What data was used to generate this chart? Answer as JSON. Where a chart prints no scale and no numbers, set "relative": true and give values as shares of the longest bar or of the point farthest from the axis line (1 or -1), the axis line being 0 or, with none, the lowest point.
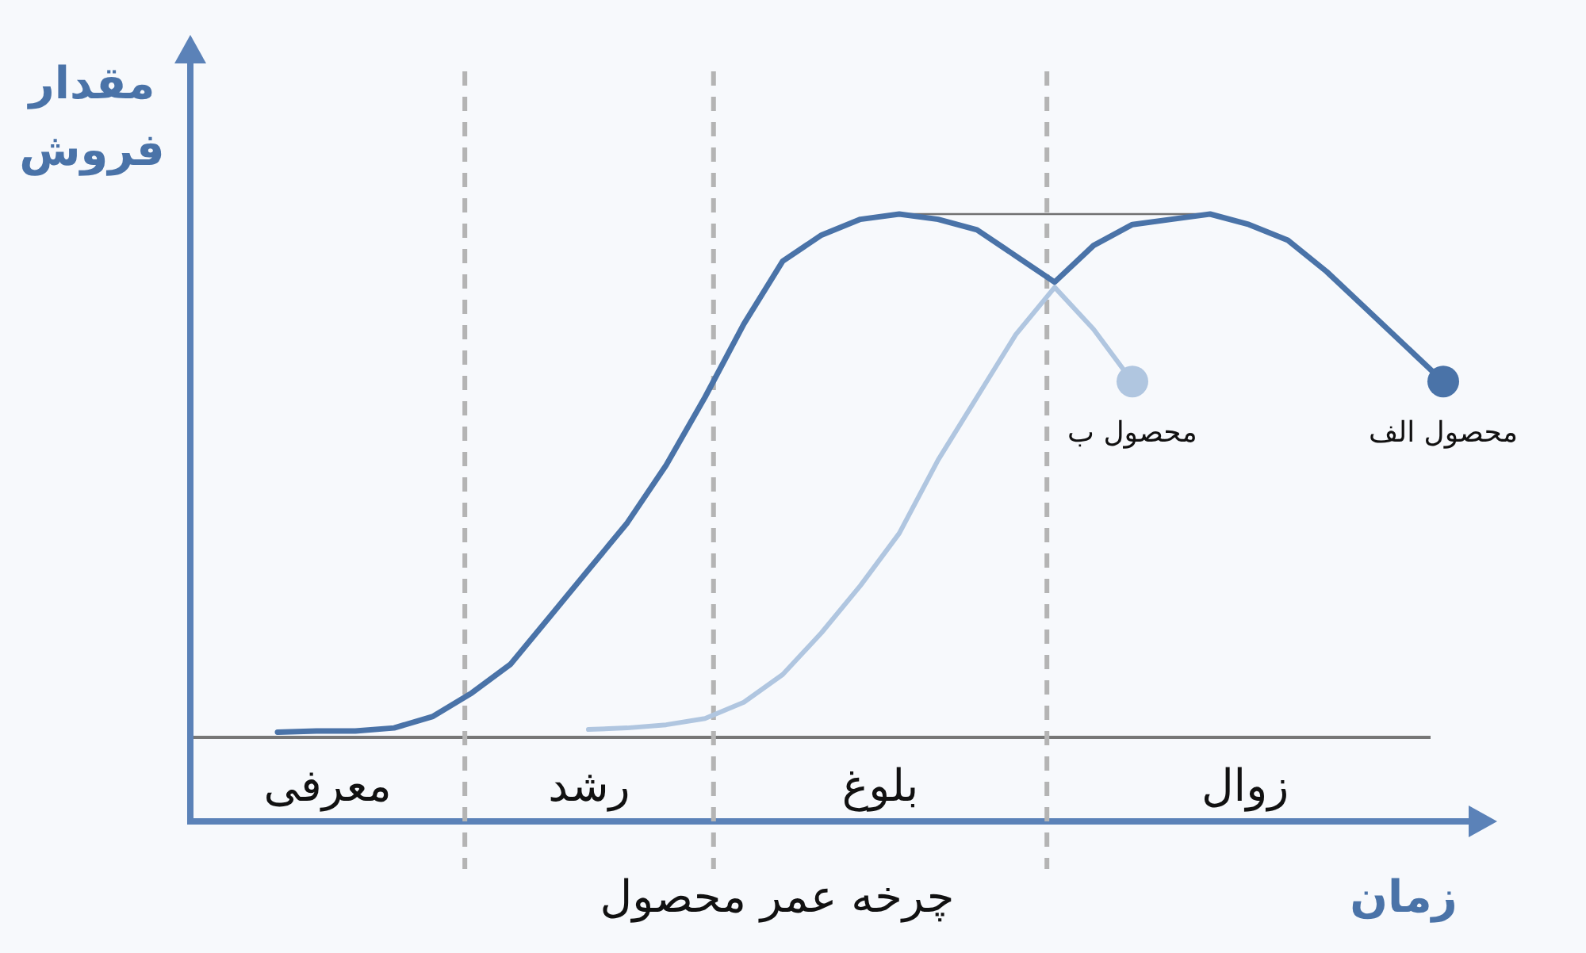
{
  "chart_data": {
    "type": "line",
    "relative": true,
    "ylabel": "مقدار فروش",
    "xlabel": "زمان",
    "categories": [
      null,
      null,
      null,
      null,
      null,
      null,
      null,
      null,
      null,
      null,
      null,
      null,
      null,
      null,
      null,
      null,
      null,
      null,
      null,
      null,
      null,
      null,
      null,
      null,
      null,
      null,
      null,
      null,
      null,
      null,
      null
    ],
    "series": [
      {
        "name": "محصول الف",
        "color": "#4a73a8",
        "values": [
          0.01,
          0.012,
          0.012,
          0.018,
          0.04,
          0.085,
          0.14,
          0.23,
          0.32,
          0.41,
          0.52,
          0.65,
          0.79,
          0.91,
          0.96,
          0.99,
          1.0,
          0.99,
          0.97,
          0.92,
          0.87,
          0.94,
          0.98,
          0.99,
          1.0,
          0.98,
          0.95,
          0.89,
          0.82,
          0.75,
          0.68
        ]
      },
      {
        "name": "محصول ب",
        "color": "#b0c6e0",
        "values": [
          null,
          null,
          null,
          null,
          null,
          null,
          null,
          null,
          0.015,
          0.018,
          0.024,
          0.036,
          0.067,
          0.12,
          0.2,
          0.29,
          0.39,
          0.53,
          0.65,
          0.77,
          0.86,
          0.78,
          0.68,
          null,
          null,
          null,
          null,
          null,
          null,
          null,
          null
        ]
      }
    ],
    "ref_lines": [
      {
        "axis": "y",
        "value": 1,
        "label": null,
        "color": "#707070",
        "line_style": "solid"
      }
    ],
    "annotations": [
      "معرفی",
      "رشد",
      "بلوغ",
      "زوال",
      "چرخه عمر محصول"
    ]
  }
}
